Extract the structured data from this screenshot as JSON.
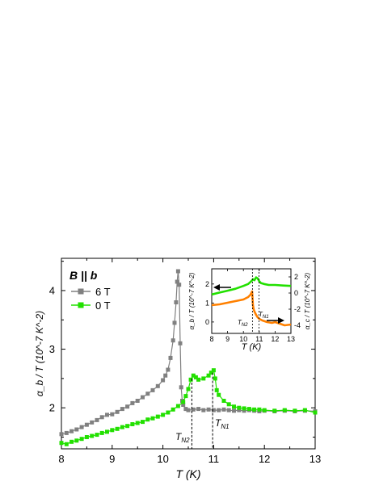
{
  "chart_data": [
    {
      "type": "line",
      "condition": "B || b",
      "xlabel": "T (K)",
      "ylabel": "α_b / T (10^-7 K^-2)",
      "xlim": [
        8,
        13
      ],
      "ylim": [
        1.3,
        4.55
      ],
      "xticks": [
        "8",
        "9",
        "10",
        "11",
        "12",
        "13"
      ],
      "yticks": [
        "2",
        "3",
        "4"
      ],
      "legend_position": "top-left",
      "transition_labels": [
        {
          "main": "T",
          "sub": "N2",
          "x": 10.57
        },
        {
          "main": "T",
          "sub": "N1",
          "x": 10.98
        }
      ],
      "series": [
        {
          "name": "6 T",
          "color": "#808080",
          "x": [
            8.0,
            8.1,
            8.2,
            8.3,
            8.4,
            8.5,
            8.6,
            8.7,
            8.8,
            8.9,
            9.0,
            9.1,
            9.2,
            9.3,
            9.4,
            9.5,
            9.6,
            9.7,
            9.8,
            9.9,
            10.0,
            10.05,
            10.1,
            10.15,
            10.2,
            10.23,
            10.26,
            10.28,
            10.3,
            10.32,
            10.34,
            10.36,
            10.38,
            10.4,
            10.45,
            10.5,
            10.6,
            10.7,
            10.8,
            10.9,
            11.0,
            11.1,
            11.2,
            11.3,
            11.4,
            11.5,
            11.6,
            11.7,
            11.8,
            11.9,
            12.0,
            12.2,
            12.4,
            12.6,
            12.8,
            13.0
          ],
          "values": [
            1.55,
            1.57,
            1.6,
            1.63,
            1.67,
            1.71,
            1.75,
            1.79,
            1.84,
            1.88,
            1.89,
            1.93,
            1.98,
            2.02,
            2.08,
            2.12,
            2.18,
            2.24,
            2.3,
            2.37,
            2.47,
            2.55,
            2.65,
            2.85,
            3.15,
            3.45,
            3.8,
            4.15,
            4.33,
            4.1,
            3.1,
            2.35,
            2.12,
            2.05,
            1.98,
            1.96,
            1.97,
            1.98,
            1.96,
            1.97,
            1.96,
            1.96,
            1.97,
            1.96,
            1.95,
            1.96,
            1.95,
            1.96,
            1.95,
            1.94,
            1.95,
            1.94,
            1.95,
            1.94,
            1.95,
            1.94
          ]
        },
        {
          "name": "0 T",
          "color": "#22e000",
          "x": [
            8.0,
            8.1,
            8.2,
            8.3,
            8.4,
            8.5,
            8.6,
            8.7,
            8.8,
            8.9,
            9.0,
            9.1,
            9.2,
            9.3,
            9.4,
            9.5,
            9.6,
            9.7,
            9.8,
            9.9,
            10.0,
            10.1,
            10.2,
            10.3,
            10.4,
            10.45,
            10.5,
            10.55,
            10.6,
            10.65,
            10.7,
            10.8,
            10.9,
            10.95,
            11.0,
            11.03,
            11.06,
            11.1,
            11.2,
            11.3,
            11.4,
            11.5,
            11.6,
            11.7,
            11.8,
            11.9,
            12.0,
            12.2,
            12.4,
            12.6,
            12.8,
            13.0
          ],
          "values": [
            1.4,
            1.38,
            1.42,
            1.44,
            1.47,
            1.5,
            1.52,
            1.54,
            1.57,
            1.59,
            1.62,
            1.64,
            1.67,
            1.69,
            1.72,
            1.74,
            1.76,
            1.8,
            1.82,
            1.85,
            1.88,
            1.92,
            1.97,
            2.03,
            2.1,
            2.2,
            2.32,
            2.48,
            2.55,
            2.52,
            2.48,
            2.5,
            2.55,
            2.6,
            2.64,
            2.5,
            2.3,
            2.22,
            2.12,
            2.06,
            2.02,
            2.0,
            1.99,
            1.98,
            1.97,
            1.97,
            1.96,
            1.95,
            1.96,
            1.95,
            1.96,
            1.92
          ]
        }
      ]
    },
    {
      "type": "line",
      "placement": "inset",
      "xlabel": "T (K)",
      "ylabel_left": "α_b / T (10^-7 K^-2)",
      "ylabel_right": "α_c / T (10^-7 K^-2)",
      "xlim": [
        8,
        13
      ],
      "ylim_left": [
        -0.6,
        2.8
      ],
      "ylim_right": [
        -5,
        3
      ],
      "xticks": [
        "8",
        "9",
        "10",
        "11",
        "12",
        "13"
      ],
      "yticks_left": [
        "0",
        "1",
        "2"
      ],
      "yticks_right": [
        "-4",
        "-2",
        "0",
        "2"
      ],
      "transition_labels": [
        {
          "main": "T",
          "sub": "N2",
          "x": 10.57
        },
        {
          "main": "T",
          "sub": "N1",
          "x": 10.98
        }
      ],
      "series": [
        {
          "name": "α_b/T",
          "axis": "left",
          "color": "#22e000",
          "x": [
            8.0,
            8.5,
            9.0,
            9.5,
            10.0,
            10.3,
            10.5,
            10.6,
            10.7,
            10.8,
            10.9,
            11.0,
            11.1,
            11.3,
            11.6,
            12.0,
            12.5,
            13.0
          ],
          "values": [
            1.45,
            1.55,
            1.65,
            1.75,
            1.9,
            2.0,
            2.15,
            2.25,
            2.2,
            2.35,
            2.3,
            2.15,
            2.05,
            2.0,
            1.95,
            1.95,
            1.92,
            1.9
          ]
        },
        {
          "name": "α_c/T",
          "axis": "right",
          "color": "#ff8000",
          "x": [
            8.0,
            8.5,
            9.0,
            9.5,
            10.0,
            10.3,
            10.45,
            10.55,
            10.6,
            10.65,
            10.7,
            10.8,
            10.9,
            11.0,
            11.2,
            11.5,
            11.8,
            12.0,
            12.3,
            12.6,
            13.0
          ],
          "values": [
            -1.5,
            -1.4,
            -1.2,
            -1.0,
            -0.8,
            -0.5,
            -0.2,
            0.2,
            -1.5,
            -2.0,
            -2.3,
            -2.7,
            -3.0,
            -3.2,
            -3.4,
            -3.6,
            -3.7,
            -3.6,
            -3.8,
            -4.0,
            -3.9
          ]
        }
      ]
    }
  ]
}
